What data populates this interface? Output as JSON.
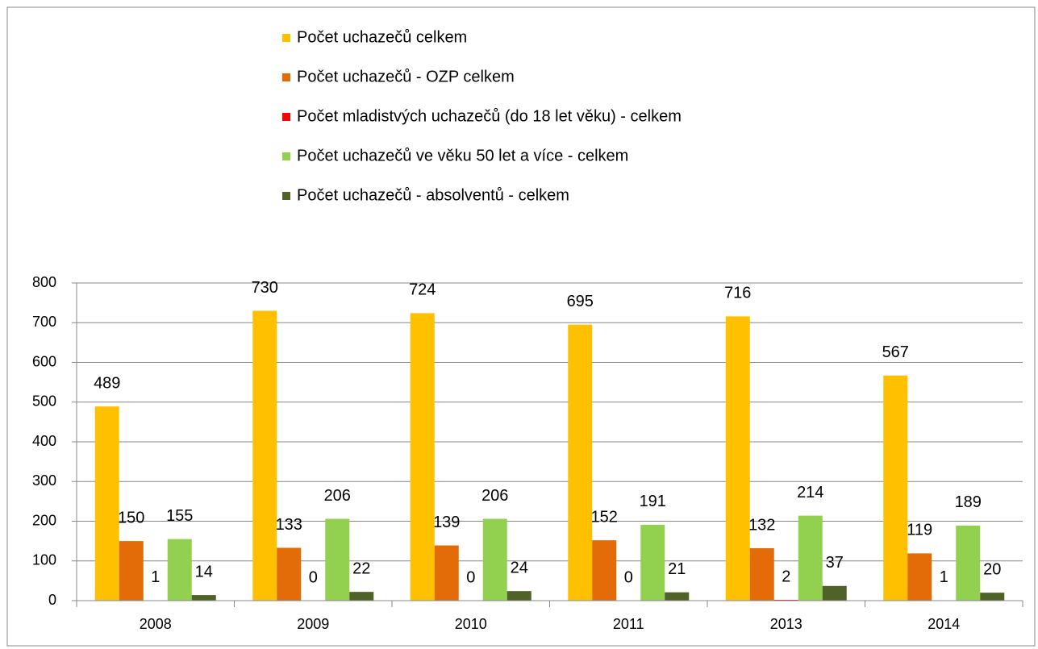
{
  "chart_data": {
    "type": "bar",
    "categories": [
      "2008",
      "2009",
      "2010",
      "2011",
      "2013",
      "2014"
    ],
    "series": [
      {
        "name": "Počet uchazečů celkem",
        "color": "#FFC000",
        "values": [
          489,
          730,
          724,
          695,
          716,
          567
        ]
      },
      {
        "name": "Počet uchazečů - OZP celkem",
        "color": "#E36C09",
        "values": [
          150,
          133,
          139,
          152,
          132,
          119
        ]
      },
      {
        "name": "Počet mladistvých uchazečů (do 18 let věku) - celkem",
        "color": "#FF0000",
        "values": [
          1,
          0,
          0,
          0,
          2,
          1
        ]
      },
      {
        "name": "Počet uchazečů ve věku 50 let a více - celkem",
        "color": "#92D050",
        "values": [
          155,
          206,
          206,
          191,
          214,
          189
        ]
      },
      {
        "name": "Počet uchazečů - absolventů - celkem",
        "color": "#4F6228",
        "values": [
          14,
          22,
          24,
          21,
          37,
          20
        ]
      }
    ],
    "ylim": [
      0,
      800
    ],
    "yticks": [
      0,
      100,
      200,
      300,
      400,
      500,
      600,
      700,
      800
    ],
    "grid": true,
    "legend": "top"
  }
}
